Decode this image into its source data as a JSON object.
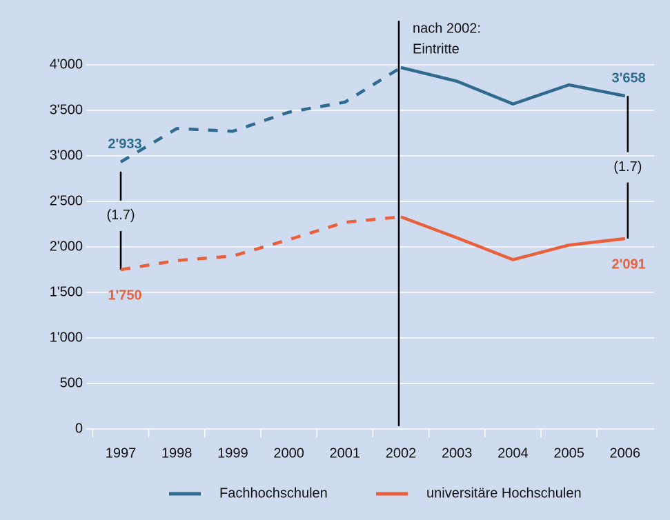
{
  "chart_data": {
    "type": "line",
    "categories": [
      "1997",
      "1998",
      "1999",
      "2000",
      "2001",
      "2002",
      "2003",
      "2004",
      "2005",
      "2006"
    ],
    "series": [
      {
        "name": "Fachhochschulen",
        "color": "#2e6b8f",
        "values": [
          2933,
          3300,
          3270,
          3480,
          3590,
          3970,
          3820,
          3570,
          3780,
          3658
        ],
        "value_labels": [
          "2'933",
          null,
          null,
          null,
          null,
          null,
          null,
          null,
          null,
          "3'658"
        ]
      },
      {
        "name": "universitäre Hochschulen",
        "color": "#e8603c",
        "values": [
          1750,
          1850,
          1900,
          2080,
          2270,
          2330,
          2100,
          1860,
          2020,
          2091
        ],
        "value_labels": [
          "1'750",
          null,
          null,
          null,
          null,
          null,
          null,
          null,
          null,
          "2'091"
        ]
      }
    ],
    "dashed_before": "2002",
    "ylim": [
      0,
      4000
    ],
    "yticks": [
      0,
      500,
      {
        "value": 1000,
        "label": "1'000"
      },
      {
        "value": 1500,
        "label": "1'500"
      },
      {
        "value": 2000,
        "label": "2'000"
      },
      {
        "value": 2500,
        "label": "2'500"
      },
      {
        "value": 3000,
        "label": "3'000"
      },
      {
        "value": 3500,
        "label": "3'500"
      },
      {
        "value": 4000,
        "label": "4'000"
      }
    ],
    "grid": true,
    "annotations": [
      "nach 2002:",
      "Eintritte"
    ],
    "ratio_labels": [
      "(1.7)",
      "(1.7)"
    ],
    "legend": "bottom"
  }
}
